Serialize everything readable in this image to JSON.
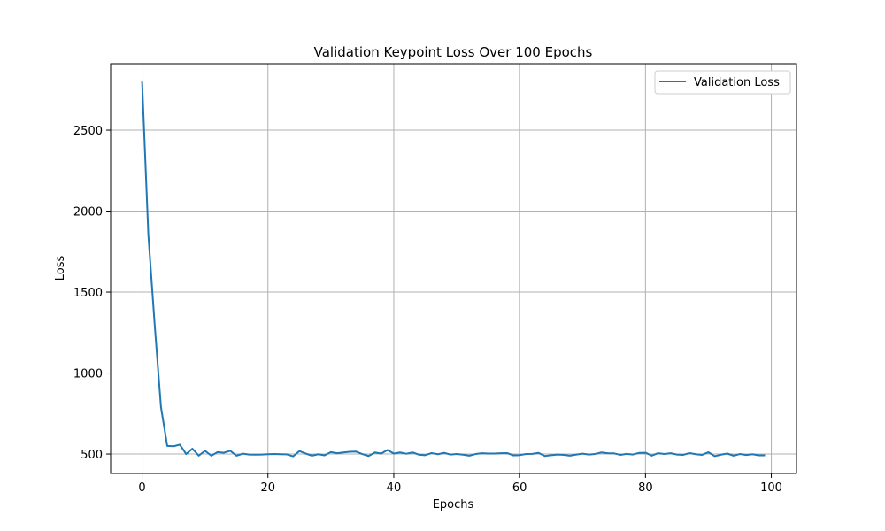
{
  "chart_data": {
    "type": "line",
    "title": "Validation Keypoint Loss Over 100 Epochs",
    "xlabel": "Epochs",
    "ylabel": "Loss",
    "xlim": [
      -5,
      104
    ],
    "ylim": [
      380,
      2910
    ],
    "xticks": [
      0,
      20,
      40,
      60,
      80,
      100
    ],
    "yticks": [
      500,
      1000,
      1500,
      2000,
      2500
    ],
    "grid": true,
    "legend": "top-right",
    "series": [
      {
        "name": "Validation Loss",
        "color": "#1f77b4",
        "x": [
          0,
          1,
          2,
          3,
          4,
          5,
          6,
          7,
          8,
          9,
          10,
          11,
          12,
          13,
          14,
          15,
          16,
          17,
          18,
          19,
          20,
          21,
          22,
          23,
          24,
          25,
          26,
          27,
          28,
          29,
          30,
          31,
          32,
          33,
          34,
          35,
          36,
          37,
          38,
          39,
          40,
          41,
          42,
          43,
          44,
          45,
          46,
          47,
          48,
          49,
          50,
          51,
          52,
          53,
          54,
          55,
          56,
          57,
          58,
          59,
          60,
          61,
          62,
          63,
          64,
          65,
          66,
          67,
          68,
          69,
          70,
          71,
          72,
          73,
          74,
          75,
          76,
          77,
          78,
          79,
          80,
          81,
          82,
          83,
          84,
          85,
          86,
          87,
          88,
          89,
          90,
          91,
          92,
          93,
          94,
          95,
          96,
          97,
          98,
          99
        ],
        "values": [
          2800,
          1850,
          1300,
          790,
          550,
          548,
          558,
          500,
          533,
          490,
          520,
          490,
          512,
          508,
          520,
          490,
          502,
          497,
          496,
          497,
          499,
          500,
          499,
          498,
          486,
          518,
          503,
          490,
          499,
          492,
          512,
          505,
          510,
          514,
          515,
          500,
          488,
          510,
          503,
          525,
          503,
          510,
          502,
          510,
          496,
          493,
          506,
          499,
          507,
          497,
          500,
          496,
          490,
          500,
          505,
          503,
          503,
          505,
          506,
          492,
          493,
          500,
          501,
          507,
          488,
          493,
          497,
          495,
          490,
          497,
          502,
          497,
          500,
          510,
          505,
          504,
          495,
          501,
          497,
          507,
          508,
          490,
          505,
          500,
          505,
          497,
          495,
          506,
          499,
          495,
          511,
          487,
          496,
          503,
          490,
          500,
          494,
          499,
          492,
          492
        ]
      }
    ]
  }
}
